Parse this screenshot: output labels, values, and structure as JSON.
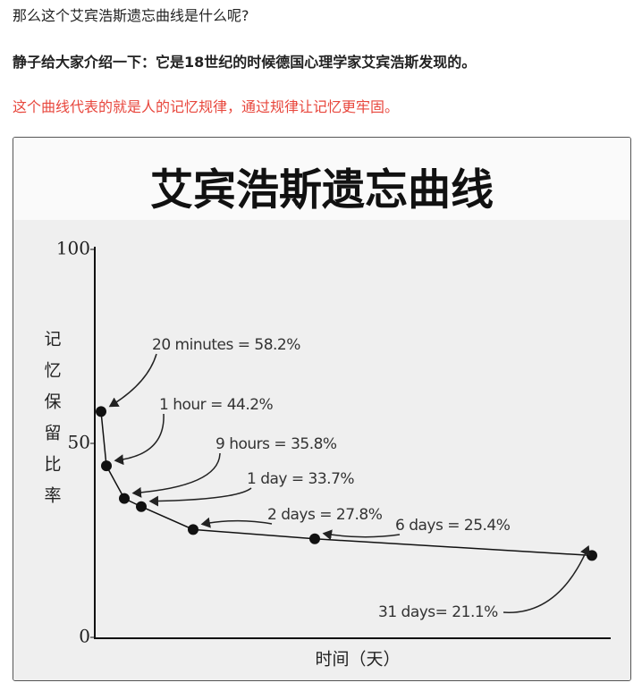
{
  "paragraphs": [
    "那么这个艾宾浩斯遗忘曲线是什么呢?",
    "静子给大家介绍一下：它是18世纪的时候德国心理学家艾宾浩斯发现的。",
    "这个曲线代表的就是人的记忆规律，通过规律让记忆更牢固。"
  ],
  "chart_data": {
    "type": "line",
    "title": "艾宾浩斯遗忘曲线",
    "y_label": "记忆保留比率",
    "x_label": "时间（天）",
    "categories": [
      "20 minutes = 58.2%",
      "1 hour = 44.2%",
      "9 hours = 35.8%",
      "1 day = 33.7%",
      "2 days = 27.8%",
      "6 days = 25.4%",
      "31 days= 21.1%"
    ],
    "values": [
      58.2,
      44.2,
      35.8,
      33.7,
      27.8,
      25.4,
      21.1
    ],
    "color": "#111111",
    "ylim": [
      0,
      100
    ],
    "yticks": [
      0,
      50,
      100
    ]
  }
}
